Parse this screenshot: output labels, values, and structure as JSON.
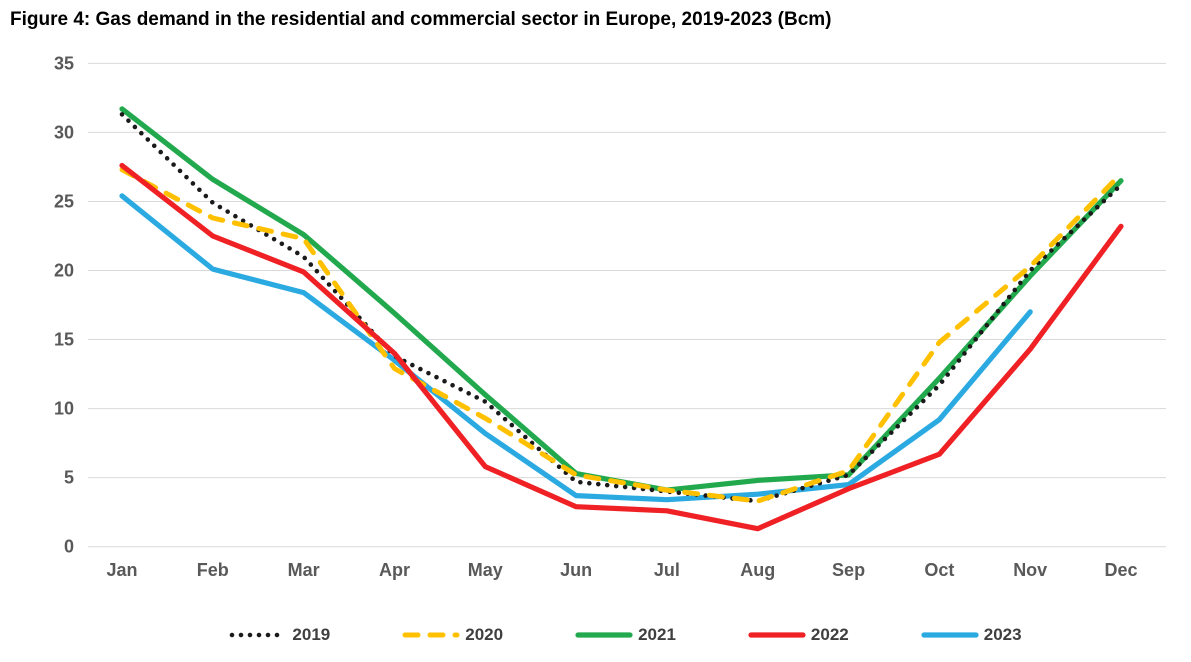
{
  "title": "Figure 4: Gas demand in the residential and commercial sector in Europe, 2019-2023 (Bcm)",
  "chart_data": {
    "type": "line",
    "title": "Figure 4: Gas demand in the residential and commercial sector in Europe, 2019-2023 (Bcm)",
    "unit": "Bcm",
    "categories": [
      "Jan",
      "Feb",
      "Mar",
      "Apr",
      "May",
      "Jun",
      "Jul",
      "Aug",
      "Sep",
      "Oct",
      "Nov",
      "Dec"
    ],
    "ylim": [
      0,
      35
    ],
    "yticks": [
      0,
      5,
      10,
      15,
      20,
      25,
      30,
      35
    ],
    "grid": true,
    "legend_position": "bottom",
    "series": [
      {
        "name": "2021",
        "color": "#22A94E",
        "style": "solid",
        "values": [
          31.7,
          26.6,
          22.6,
          16.9,
          11.0,
          5.3,
          4.1,
          4.8,
          5.2,
          12.2,
          19.6,
          26.5
        ]
      },
      {
        "name": "2023",
        "color": "#2BAAE2",
        "style": "solid",
        "values": [
          25.4,
          20.1,
          18.4,
          13.5,
          8.2,
          3.7,
          3.4,
          3.8,
          4.5,
          9.2,
          17.0,
          null
        ]
      },
      {
        "name": "2019",
        "color": "#1A1A1A",
        "style": "dotted",
        "values": [
          31.3,
          24.9,
          21.0,
          13.8,
          10.5,
          4.7,
          4.0,
          3.3,
          5.2,
          11.7,
          20.0,
          26.2
        ]
      },
      {
        "name": "2020",
        "color": "#FFC000",
        "style": "dashed",
        "values": [
          27.3,
          23.8,
          22.3,
          12.9,
          9.3,
          5.2,
          4.1,
          3.3,
          5.5,
          14.8,
          20.3,
          27.0
        ]
      },
      {
        "name": "2022",
        "color": "#EF2125",
        "style": "solid",
        "values": [
          27.6,
          22.5,
          19.9,
          14.0,
          5.8,
          2.9,
          2.6,
          1.3,
          4.2,
          6.7,
          14.3,
          23.2
        ]
      }
    ],
    "legend_order": [
      "2019",
      "2020",
      "2021",
      "2022",
      "2023"
    ]
  },
  "layout_note": ""
}
